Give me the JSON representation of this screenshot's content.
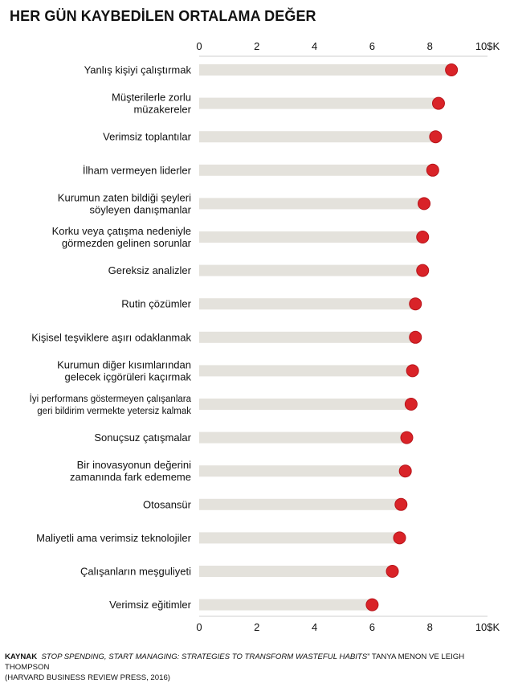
{
  "chart_data": {
    "type": "dot",
    "title": "HER GÜN KAYBEDİLEN ORTALAMA DEĞER",
    "xlim": [
      0,
      10
    ],
    "x_ticks": [
      0,
      2,
      4,
      6,
      8,
      10
    ],
    "x_tick_labels": [
      "0",
      "2",
      "4",
      "6",
      "8",
      "10$K"
    ],
    "grid": false,
    "colors": {
      "dot": "#d92328",
      "dot_edge": "#b8141a",
      "track": "#e4e2dc",
      "axis_line": "#cfcfcf"
    },
    "categories": [
      [
        "Yanlış kişiyi çalıştırmak"
      ],
      [
        "Müşterilerle zorlu",
        "müzakereler"
      ],
      [
        "Verimsiz toplantılar"
      ],
      [
        "İlham vermeyen liderler"
      ],
      [
        "Kurumun zaten bildiği şeyleri",
        "söyleyen danışmanlar"
      ],
      [
        "Korku veya çatışma nedeniyle",
        "görmezden gelinen sorunlar"
      ],
      [
        "Gereksiz analizler"
      ],
      [
        "Rutin çözümler"
      ],
      [
        "Kişisel teşviklere aşırı odaklanmak"
      ],
      [
        "Kurumun diğer kısımlarından",
        "gelecek içgörüleri kaçırmak"
      ],
      [
        "İyi performans göstermeyen çalışanlara",
        "geri bildirim vermekte yetersiz kalmak"
      ],
      [
        "Sonuçsuz çatışmalar"
      ],
      [
        "Bir inovasyonun değerini",
        "zamanında fark edememe"
      ],
      [
        "Otosansür"
      ],
      [
        "Maliyetli ama verimsiz teknolojiler"
      ],
      [
        "Çalışanların meşguliyeti"
      ],
      [
        "Verimsiz eğitimler"
      ]
    ],
    "values": [
      8.75,
      8.3,
      8.2,
      8.1,
      7.8,
      7.75,
      7.75,
      7.5,
      7.5,
      7.4,
      7.35,
      7.2,
      7.15,
      7.0,
      6.95,
      6.7,
      6.0
    ]
  },
  "source": {
    "label": "KAYNAK",
    "book": "STOP SPENDING, START MANAGING: STRATEGIES TO TRANSFORM WASTEFUL HABITS",
    "authors": "” TANYA MENON VE LEIGH THOMPSON",
    "publisher": "(HARVARD BUSINESS REVIEW PRESS, 2016)"
  }
}
